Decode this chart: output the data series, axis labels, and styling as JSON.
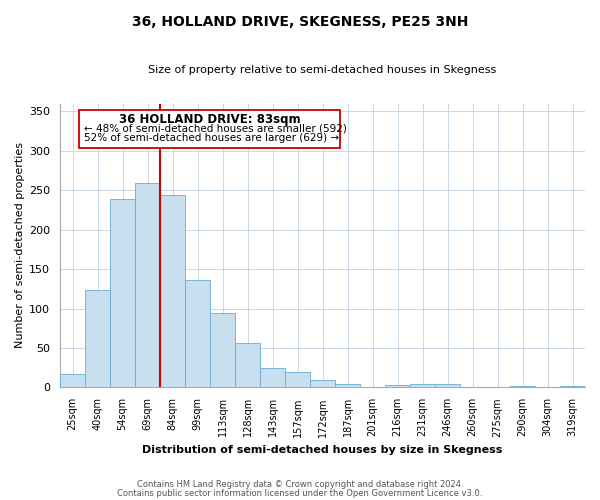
{
  "title": "36, HOLLAND DRIVE, SKEGNESS, PE25 3NH",
  "subtitle": "Size of property relative to semi-detached houses in Skegness",
  "xlabel": "Distribution of semi-detached houses by size in Skegness",
  "ylabel": "Number of semi-detached properties",
  "bar_labels": [
    "25sqm",
    "40sqm",
    "54sqm",
    "69sqm",
    "84sqm",
    "99sqm",
    "113sqm",
    "128sqm",
    "143sqm",
    "157sqm",
    "172sqm",
    "187sqm",
    "201sqm",
    "216sqm",
    "231sqm",
    "246sqm",
    "260sqm",
    "275sqm",
    "290sqm",
    "304sqm",
    "319sqm"
  ],
  "bar_values": [
    17,
    123,
    239,
    259,
    244,
    136,
    94,
    56,
    25,
    20,
    10,
    5,
    0,
    3,
    5,
    5,
    0,
    0,
    2,
    0,
    2
  ],
  "bar_color": "#c8dff0",
  "bar_edge_color": "#6aaad4",
  "highlight_bar_index": 4,
  "vline_color": "#cc0000",
  "annotation_title": "36 HOLLAND DRIVE: 83sqm",
  "annotation_line1": "← 48% of semi-detached houses are smaller (592)",
  "annotation_line2": "52% of semi-detached houses are larger (629) →",
  "footnote1": "Contains HM Land Registry data © Crown copyright and database right 2024.",
  "footnote2": "Contains public sector information licensed under the Open Government Licence v3.0.",
  "ylim": [
    0,
    360
  ],
  "yticks": [
    0,
    50,
    100,
    150,
    200,
    250,
    300,
    350
  ]
}
